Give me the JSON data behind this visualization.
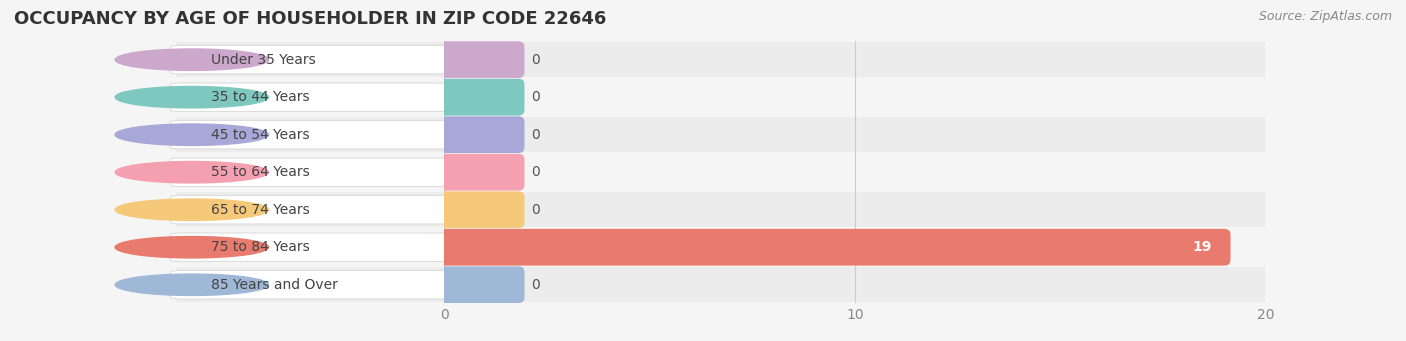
{
  "title": "OCCUPANCY BY AGE OF HOUSEHOLDER IN ZIP CODE 22646",
  "source": "Source: ZipAtlas.com",
  "categories": [
    "Under 35 Years",
    "35 to 44 Years",
    "45 to 54 Years",
    "55 to 64 Years",
    "65 to 74 Years",
    "75 to 84 Years",
    "85 Years and Over"
  ],
  "values": [
    0,
    0,
    0,
    0,
    0,
    19,
    0
  ],
  "bar_colors": [
    "#cca8cc",
    "#7ec8c0",
    "#a8a8d8",
    "#f4a0b0",
    "#f5c87a",
    "#e87b6e",
    "#a0b8d8"
  ],
  "background_color": "#f5f5f5",
  "xlim": [
    0,
    20
  ],
  "xticks": [
    0,
    10,
    20
  ],
  "title_fontsize": 13,
  "label_fontsize": 10,
  "tick_fontsize": 10
}
